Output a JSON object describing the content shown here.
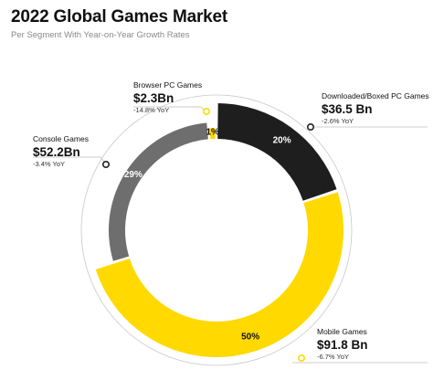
{
  "header": {
    "title": "2022 Global Games Market",
    "subtitle": "Per Segment With Year-on-Year Growth Rates"
  },
  "chart_data": {
    "type": "pie",
    "donut": true,
    "title": "2022 Global Games Market",
    "subtitle": "Per Segment With Year-on-Year Growth Rates",
    "segments": [
      {
        "name": "Downloaded/Boxed PC Games",
        "value": 36.5,
        "value_label": "$36.5 Bn",
        "percent": 20,
        "percent_label": "20%",
        "yoy": -2.6,
        "yoy_label": "-2.6% YoY",
        "color": "#1e1e1e",
        "text_color": "#ffffff"
      },
      {
        "name": "Mobile Games",
        "value": 91.8,
        "value_label": "$91.8 Bn",
        "percent": 50,
        "percent_label": "50%",
        "yoy": -6.7,
        "yoy_label": "-6.7% YoY",
        "color": "#ffd900",
        "text_color": "#111111"
      },
      {
        "name": "Console Games",
        "value": 52.2,
        "value_label": "$52.2Bn",
        "percent": 29,
        "percent_label": "29%",
        "yoy": -3.4,
        "yoy_label": "-3.4% YoY",
        "color": "#6e6e6e",
        "text_color": "#ffffff"
      },
      {
        "name": "Browser PC Games",
        "value": 2.3,
        "value_label": "$2.3Bn",
        "percent": 1,
        "percent_label": "1%",
        "yoy": -14.8,
        "yoy_label": "-14.8% YoY",
        "color": "#ffd900",
        "text_color": "#111111"
      }
    ],
    "colors": {
      "pointer_dot": "#ffd900",
      "guide": "#c8c8c8"
    }
  }
}
